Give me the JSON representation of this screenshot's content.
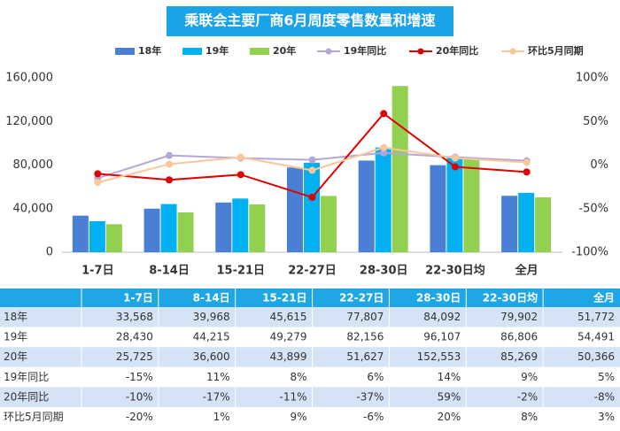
{
  "chart_data": {
    "type": "bar",
    "title": "乘联会主要厂商6月周度零售数量和增速",
    "categories": [
      "1-7日",
      "8-14日",
      "15-21日",
      "22-27日",
      "28-30日",
      "22-30日均",
      "全月"
    ],
    "series": [
      {
        "name": "18年",
        "color": "#4a7fd4",
        "values": [
          33568,
          39968,
          45615,
          77807,
          84092,
          79902,
          51772
        ]
      },
      {
        "name": "19年",
        "color": "#00b0f0",
        "values": [
          28430,
          44215,
          49279,
          82156,
          96107,
          86806,
          54491
        ]
      },
      {
        "name": "20年",
        "color": "#92d050",
        "values": [
          25725,
          36600,
          43899,
          51627,
          152553,
          85269,
          50366
        ]
      },
      {
        "name": "19年同比",
        "type": "line",
        "axis": "y2",
        "color": "#b4a7d6",
        "values": [
          -15,
          11,
          8,
          6,
          14,
          9,
          5
        ]
      },
      {
        "name": "20年同比",
        "type": "line",
        "axis": "y2",
        "color": "#e00000",
        "values": [
          -10,
          -17,
          -11,
          -37,
          59,
          -2,
          -8
        ]
      },
      {
        "name": "环比5月同期",
        "type": "line",
        "axis": "y2",
        "color": "#f8c79a",
        "values": [
          -20,
          1,
          9,
          -6,
          20,
          8,
          3
        ]
      }
    ],
    "ylim": [
      0,
      160000
    ],
    "yticks": [
      0,
      {
        "value": 40000,
        "label": "40,000"
      },
      {
        "value": 80000,
        "label": "80,000"
      },
      {
        "value": 120000,
        "label": "120,000"
      },
      {
        "value": 160000,
        "label": "160,000"
      }
    ],
    "y2lim": [
      -100,
      100
    ],
    "y2ticks": [
      {
        "value": -100,
        "label": "-100%"
      },
      {
        "value": -50,
        "label": "-50%"
      },
      {
        "value": 0,
        "label": "0%"
      },
      {
        "value": 50,
        "label": "50%"
      },
      {
        "value": 100,
        "label": "100%"
      }
    ],
    "grid": false,
    "legend": "top"
  },
  "table": {
    "header": [
      "",
      "1-7日",
      "8-14日",
      "15-21日",
      "22-27日",
      "28-30日",
      "22-30日均",
      "全月"
    ],
    "rows": [
      [
        "18年",
        "33,568",
        "39,968",
        "45,615",
        "77,807",
        "84,092",
        "79,902",
        "51,772"
      ],
      [
        "19年",
        "28,430",
        "44,215",
        "49,279",
        "82,156",
        "96,107",
        "86,806",
        "54,491"
      ],
      [
        "20年",
        "25,725",
        "36,600",
        "43,899",
        "51,627",
        "152,553",
        "85,269",
        "50,366"
      ],
      [
        "19年同比",
        "-15%",
        "11%",
        "8%",
        "6%",
        "14%",
        "9%",
        "5%"
      ],
      [
        "20年同比",
        "-10%",
        "-17%",
        "-11%",
        "-37%",
        "59%",
        "-2%",
        "-8%"
      ],
      [
        "环比5月同期",
        "-20%",
        "1%",
        "9%",
        "-6%",
        "20%",
        "8%",
        "3%"
      ]
    ]
  }
}
